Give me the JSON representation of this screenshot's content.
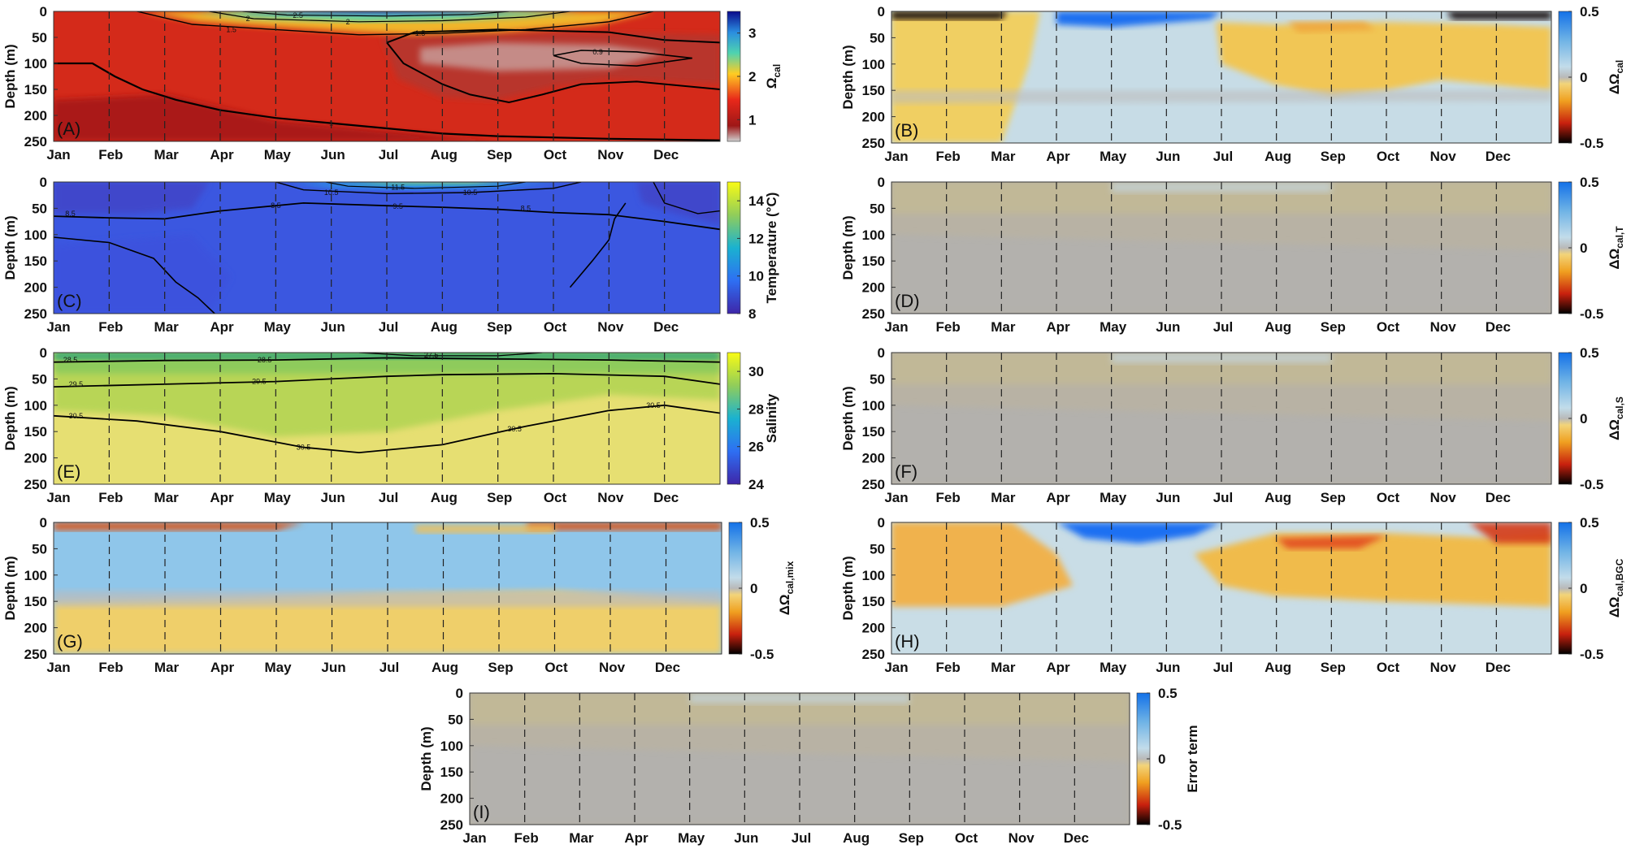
{
  "figure": {
    "months": [
      "Jan",
      "Feb",
      "Mar",
      "Apr",
      "May",
      "Jun",
      "Jul",
      "Aug",
      "Sep",
      "Oct",
      "Nov",
      "Dec"
    ],
    "depth_axis": {
      "label": "Depth (m)",
      "ticks": [
        "0",
        "50",
        "100",
        "150",
        "200",
        "250"
      ],
      "range": [
        0,
        250
      ]
    }
  },
  "chart_data": [
    {
      "id": "A",
      "panel_label": "(A)",
      "type": "heatmap",
      "quantity": "calcite saturation state",
      "colorbar": {
        "label_main": "Ω",
        "label_sub": "cal",
        "ticks": [
          "1",
          "2",
          "3"
        ],
        "range": [
          0.5,
          3.5
        ],
        "map": "jet"
      },
      "contour_levels": [
        "0.9",
        "1",
        "1.5",
        "2",
        "2.5"
      ],
      "field_notes": "surface maximum (>3) Apr-Jul, Ω≈1 layer 50-250 m, undersaturation pocket ~100 m Aug-Dec"
    },
    {
      "id": "B",
      "panel_label": "(B)",
      "type": "heatmap",
      "quantity": "total change in calcite saturation",
      "colorbar": {
        "label_main": "ΔΩ",
        "label_sub": "cal",
        "ticks": [
          "0.5",
          "0",
          "-0.5"
        ],
        "range": [
          -0.5,
          0.5
        ],
        "map": "diverging"
      }
    },
    {
      "id": "C",
      "panel_label": "(C)",
      "type": "heatmap",
      "quantity": "temperature",
      "colorbar": {
        "label_main": "Temperature (°C)",
        "label_sub": "",
        "ticks": [
          "8",
          "10",
          "12",
          "14"
        ],
        "range": [
          8,
          15
        ],
        "map": "parula"
      },
      "contour_levels": [
        "8.5",
        "9.5",
        "10.5",
        "11.5"
      ]
    },
    {
      "id": "D",
      "panel_label": "(D)",
      "type": "heatmap",
      "quantity": "temperature contribution",
      "colorbar": {
        "label_main": "ΔΩ",
        "label_sub": "cal,T",
        "ticks": [
          "0.5",
          "0",
          "-0.5"
        ],
        "range": [
          -0.5,
          0.5
        ],
        "map": "diverging"
      }
    },
    {
      "id": "E",
      "panel_label": "(E)",
      "type": "heatmap",
      "quantity": "salinity",
      "colorbar": {
        "label_main": "Salinity",
        "label_sub": "",
        "ticks": [
          "24",
          "26",
          "28",
          "30"
        ],
        "range": [
          24,
          31
        ],
        "map": "parula"
      },
      "contour_levels": [
        "27.5",
        "28.5",
        "29.5",
        "30.5"
      ]
    },
    {
      "id": "F",
      "panel_label": "(F)",
      "type": "heatmap",
      "quantity": "salinity contribution",
      "colorbar": {
        "label_main": "ΔΩ",
        "label_sub": "cal,S",
        "ticks": [
          "0.5",
          "0",
          "-0.5"
        ],
        "range": [
          -0.5,
          0.5
        ],
        "map": "diverging"
      }
    },
    {
      "id": "G",
      "panel_label": "(G)",
      "type": "heatmap",
      "quantity": "mixing contribution",
      "colorbar": {
        "label_main": "ΔΩ",
        "label_sub": "cal,mix",
        "ticks": [
          "0.5",
          "0",
          "-0.5"
        ],
        "range": [
          -0.5,
          0.5
        ],
        "map": "diverging"
      }
    },
    {
      "id": "H",
      "panel_label": "(H)",
      "type": "heatmap",
      "quantity": "biogeochemical contribution",
      "colorbar": {
        "label_main": "ΔΩ",
        "label_sub": "cal,BGC",
        "ticks": [
          "0.5",
          "0",
          "-0.5"
        ],
        "range": [
          -0.5,
          0.5
        ],
        "map": "diverging"
      }
    },
    {
      "id": "I",
      "panel_label": "(I)",
      "type": "heatmap",
      "quantity": "residual error",
      "colorbar": {
        "label_main": "Error term",
        "label_sub": "",
        "ticks": [
          "0.5",
          "0",
          "-0.5"
        ],
        "range": [
          -0.5,
          0.5
        ],
        "map": "diverging"
      }
    }
  ]
}
